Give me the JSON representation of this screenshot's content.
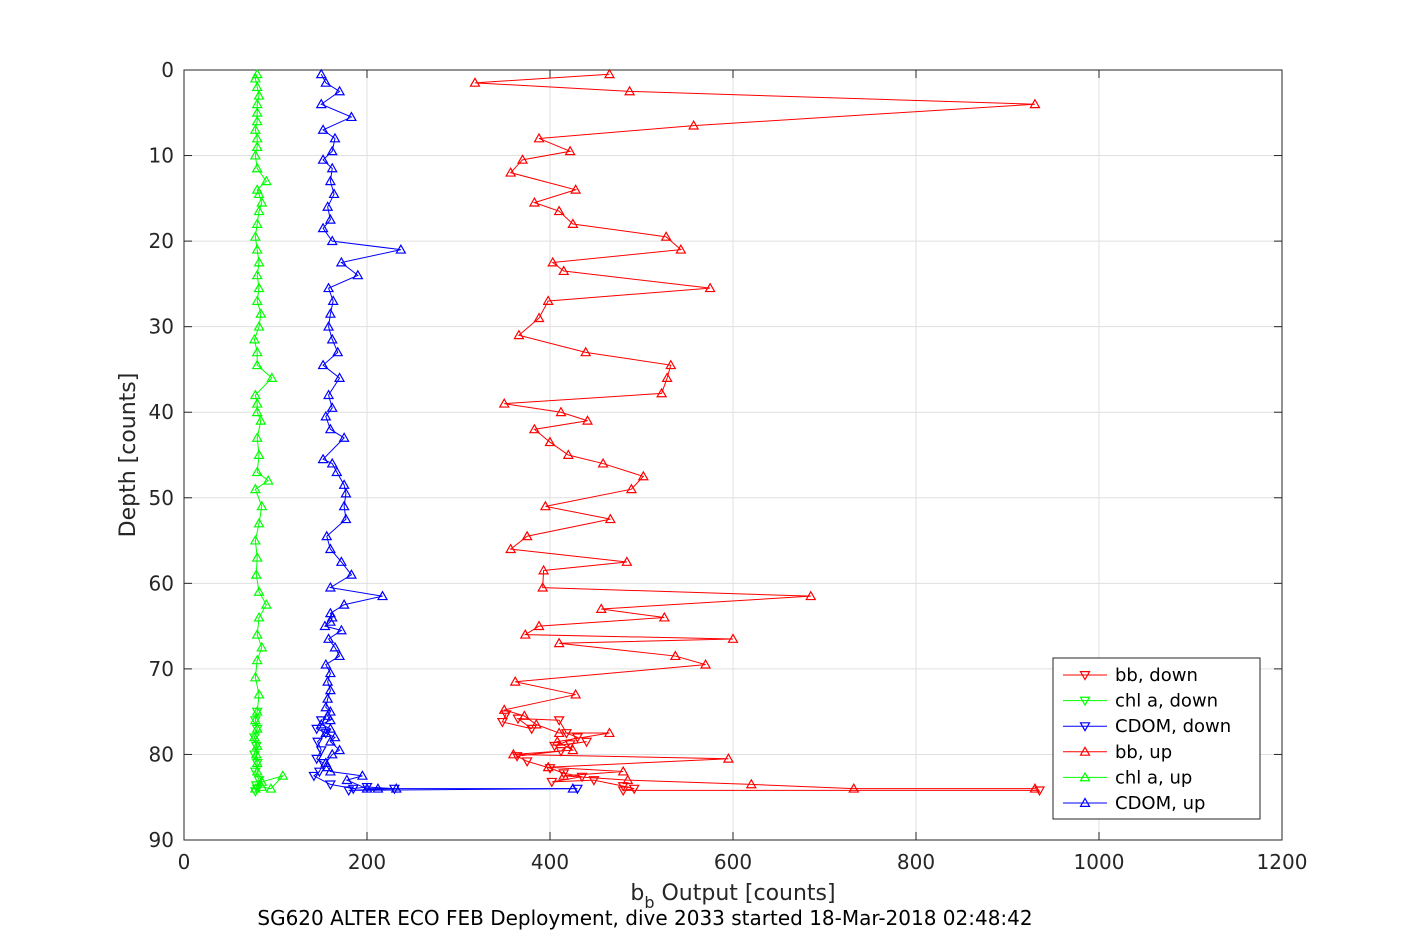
{
  "chart_data": {
    "type": "line",
    "xlabel": {
      "main": "b",
      "sub": "b",
      "rest": " Output [counts]"
    },
    "ylabel": "Depth [counts]",
    "caption": "SG620 ALTER ECO FEB Deployment, dive 2033 started 18-Mar-2018 02:48:42",
    "xlim": [
      0,
      1200
    ],
    "ylim": [
      0,
      90
    ],
    "y_reversed": true,
    "grid": true,
    "legend_position": "bottom-right",
    "x_ticks": [
      "0",
      "200",
      "400",
      "600",
      "800",
      "1000",
      "1200"
    ],
    "y_ticks": [
      "0",
      "10",
      "20",
      "30",
      "40",
      "50",
      "60",
      "70",
      "80",
      "90"
    ],
    "series": [
      {
        "name": "bb, down",
        "color": "#ff0000",
        "marker": "triangle-down",
        "points": [
          [
            352,
            75.3
          ],
          [
            348,
            76.2
          ],
          [
            380,
            77.0
          ],
          [
            365,
            75.8
          ],
          [
            410,
            76.0
          ],
          [
            418,
            77.5
          ],
          [
            430,
            78.0
          ],
          [
            405,
            79.0
          ],
          [
            440,
            78.5
          ],
          [
            422,
            78.8
          ],
          [
            412,
            79.6
          ],
          [
            364,
            80.2
          ],
          [
            375,
            80.8
          ],
          [
            400,
            81.6
          ],
          [
            415,
            82.2
          ],
          [
            435,
            82.6
          ],
          [
            402,
            83.2
          ],
          [
            448,
            83.0
          ],
          [
            480,
            83.7
          ],
          [
            492,
            84.0
          ],
          [
            480,
            84.2
          ],
          [
            935,
            84.2
          ]
        ]
      },
      {
        "name": "chl a, down",
        "color": "#00ff00",
        "marker": "triangle-down",
        "points": [
          [
            80,
            75.0
          ],
          [
            78,
            76.0
          ],
          [
            80,
            77.0
          ],
          [
            77,
            78.0
          ],
          [
            79,
            79.0
          ],
          [
            77,
            80.0
          ],
          [
            80,
            81.0
          ],
          [
            78,
            82.0
          ],
          [
            82,
            83.0
          ],
          [
            79,
            83.6
          ],
          [
            80,
            84.0
          ],
          [
            78,
            84.3
          ]
        ]
      },
      {
        "name": "CDOM, down",
        "color": "#0000ff",
        "marker": "triangle-down",
        "points": [
          [
            150,
            76.0
          ],
          [
            145,
            77.0
          ],
          [
            155,
            77.5
          ],
          [
            146,
            78.5
          ],
          [
            150,
            79.5
          ],
          [
            145,
            80.5
          ],
          [
            152,
            81.0
          ],
          [
            148,
            82.0
          ],
          [
            142,
            82.5
          ],
          [
            160,
            83.5
          ],
          [
            185,
            84.0
          ],
          [
            200,
            83.8
          ],
          [
            230,
            84.0
          ],
          [
            180,
            84.2
          ],
          [
            430,
            84.0
          ]
        ]
      },
      {
        "name": "bb, up",
        "color": "#ff0000",
        "marker": "triangle-up",
        "points": [
          [
            930,
            84.0
          ],
          [
            732,
            84.0
          ],
          [
            620,
            83.5
          ],
          [
            485,
            83.0
          ],
          [
            415,
            82.5
          ],
          [
            480,
            82.0
          ],
          [
            398,
            81.5
          ],
          [
            595,
            80.5
          ],
          [
            360,
            80.0
          ],
          [
            425,
            79.5
          ],
          [
            408,
            78.5
          ],
          [
            465,
            77.5
          ],
          [
            410,
            77.5
          ],
          [
            385,
            76.5
          ],
          [
            372,
            75.5
          ],
          [
            350,
            74.8
          ],
          [
            428,
            73.0
          ],
          [
            362,
            71.5
          ],
          [
            570,
            69.5
          ],
          [
            537,
            68.5
          ],
          [
            410,
            67.0
          ],
          [
            600,
            66.5
          ],
          [
            373,
            66.0
          ],
          [
            388,
            65.0
          ],
          [
            525,
            64.0
          ],
          [
            456,
            63.0
          ],
          [
            685,
            61.5
          ],
          [
            392,
            60.5
          ],
          [
            393,
            58.5
          ],
          [
            484,
            57.5
          ],
          [
            357,
            56.0
          ],
          [
            375,
            54.5
          ],
          [
            466,
            52.5
          ],
          [
            395,
            51.0
          ],
          [
            489,
            49.0
          ],
          [
            502,
            47.5
          ],
          [
            458,
            46.0
          ],
          [
            420,
            45.0
          ],
          [
            400,
            43.5
          ],
          [
            383,
            42.0
          ],
          [
            441,
            41.0
          ],
          [
            412,
            40.0
          ],
          [
            350,
            39.0
          ],
          [
            522,
            37.8
          ],
          [
            528,
            36.0
          ],
          [
            532,
            34.5
          ],
          [
            439,
            33.0
          ],
          [
            366,
            31.0
          ],
          [
            388,
            29.0
          ],
          [
            398,
            27.0
          ],
          [
            575,
            25.5
          ],
          [
            415,
            23.5
          ],
          [
            403,
            22.5
          ],
          [
            543,
            21.0
          ],
          [
            527,
            19.5
          ],
          [
            425,
            18.0
          ],
          [
            410,
            16.5
          ],
          [
            383,
            15.5
          ],
          [
            428,
            14.0
          ],
          [
            357,
            12.0
          ],
          [
            370,
            10.5
          ],
          [
            422,
            9.5
          ],
          [
            388,
            8.0
          ],
          [
            557,
            6.5
          ],
          [
            930,
            4.0
          ],
          [
            487,
            2.5
          ],
          [
            318,
            1.5
          ],
          [
            465,
            0.5
          ]
        ]
      },
      {
        "name": "chl a, up",
        "color": "#00ff00",
        "marker": "triangle-up",
        "points": [
          [
            78,
            84.0
          ],
          [
            85,
            83.8
          ],
          [
            95,
            84.0
          ],
          [
            108,
            82.5
          ],
          [
            85,
            83.2
          ],
          [
            80,
            82.0
          ],
          [
            80,
            81.0
          ],
          [
            79,
            80.0
          ],
          [
            80,
            79.0
          ],
          [
            77,
            78.0
          ],
          [
            80,
            77.0
          ],
          [
            78,
            76.0
          ],
          [
            80,
            75.0
          ],
          [
            82,
            73.0
          ],
          [
            78,
            71.0
          ],
          [
            80,
            69.0
          ],
          [
            85,
            67.5
          ],
          [
            80,
            66.0
          ],
          [
            82,
            64.0
          ],
          [
            90,
            62.5
          ],
          [
            82,
            61.0
          ],
          [
            79,
            59.0
          ],
          [
            80,
            57.0
          ],
          [
            78,
            55.0
          ],
          [
            82,
            53.0
          ],
          [
            85,
            51.0
          ],
          [
            78,
            49.0
          ],
          [
            92,
            48.0
          ],
          [
            80,
            47.0
          ],
          [
            82,
            45.0
          ],
          [
            80,
            43.0
          ],
          [
            84,
            41.0
          ],
          [
            80,
            40.0
          ],
          [
            80,
            39.0
          ],
          [
            78,
            38.0
          ],
          [
            96,
            36.0
          ],
          [
            80,
            34.5
          ],
          [
            80,
            33.0
          ],
          [
            77,
            31.5
          ],
          [
            82,
            30.0
          ],
          [
            84,
            28.5
          ],
          [
            80,
            27.0
          ],
          [
            82,
            25.5
          ],
          [
            80,
            24.0
          ],
          [
            82,
            22.5
          ],
          [
            80,
            21.0
          ],
          [
            78,
            19.5
          ],
          [
            80,
            18.0
          ],
          [
            82,
            16.5
          ],
          [
            85,
            15.5
          ],
          [
            82,
            14.5
          ],
          [
            80,
            14.0
          ],
          [
            90,
            13.0
          ],
          [
            80,
            11.5
          ],
          [
            78,
            10.0
          ],
          [
            80,
            9.0
          ],
          [
            80,
            8.0
          ],
          [
            78,
            7.0
          ],
          [
            80,
            6.0
          ],
          [
            80,
            5.0
          ],
          [
            80,
            4.0
          ],
          [
            82,
            3.0
          ],
          [
            80,
            2.0
          ],
          [
            78,
            1.0
          ],
          [
            80,
            0.5
          ]
        ]
      },
      {
        "name": "CDOM, up",
        "color": "#0000ff",
        "marker": "triangle-up",
        "points": [
          [
            425,
            84.0
          ],
          [
            232,
            84.0
          ],
          [
            212,
            84.0
          ],
          [
            200,
            84.0
          ],
          [
            178,
            83.0
          ],
          [
            195,
            82.5
          ],
          [
            160,
            82.0
          ],
          [
            157,
            81.5
          ],
          [
            155,
            81.0
          ],
          [
            162,
            80.0
          ],
          [
            170,
            79.5
          ],
          [
            160,
            78.5
          ],
          [
            165,
            78.0
          ],
          [
            155,
            77.5
          ],
          [
            160,
            77.0
          ],
          [
            150,
            76.5
          ],
          [
            160,
            76.0
          ],
          [
            157,
            75.5
          ],
          [
            160,
            75.0
          ],
          [
            155,
            74.5
          ],
          [
            157,
            73.5
          ],
          [
            160,
            72.5
          ],
          [
            157,
            71.5
          ],
          [
            160,
            70.5
          ],
          [
            155,
            69.5
          ],
          [
            170,
            68.5
          ],
          [
            165,
            67.5
          ],
          [
            158,
            66.5
          ],
          [
            172,
            65.5
          ],
          [
            154,
            65.0
          ],
          [
            160,
            64.5
          ],
          [
            162,
            64.0
          ],
          [
            160,
            63.5
          ],
          [
            175,
            62.5
          ],
          [
            217,
            61.5
          ],
          [
            160,
            60.5
          ],
          [
            183,
            59.0
          ],
          [
            172,
            57.5
          ],
          [
            160,
            56.0
          ],
          [
            156,
            54.5
          ],
          [
            177,
            52.5
          ],
          [
            175,
            51.0
          ],
          [
            177,
            49.5
          ],
          [
            175,
            48.5
          ],
          [
            167,
            47.0
          ],
          [
            162,
            46.0
          ],
          [
            152,
            45.5
          ],
          [
            175,
            43.0
          ],
          [
            160,
            42.0
          ],
          [
            155,
            40.5
          ],
          [
            162,
            39.5
          ],
          [
            158,
            38.0
          ],
          [
            170,
            36.0
          ],
          [
            152,
            34.5
          ],
          [
            168,
            33.0
          ],
          [
            162,
            31.5
          ],
          [
            158,
            30.0
          ],
          [
            160,
            28.5
          ],
          [
            163,
            27.0
          ],
          [
            158,
            25.5
          ],
          [
            190,
            24.0
          ],
          [
            172,
            22.5
          ],
          [
            237,
            21.0
          ],
          [
            162,
            20.0
          ],
          [
            152,
            18.5
          ],
          [
            160,
            17.5
          ],
          [
            157,
            16.0
          ],
          [
            164,
            14.5
          ],
          [
            160,
            13.0
          ],
          [
            162,
            11.5
          ],
          [
            152,
            10.5
          ],
          [
            162,
            9.5
          ],
          [
            165,
            8.0
          ],
          [
            152,
            7.0
          ],
          [
            183,
            5.5
          ],
          [
            150,
            4.0
          ],
          [
            170,
            2.5
          ],
          [
            155,
            1.5
          ],
          [
            150,
            0.5
          ]
        ]
      }
    ]
  }
}
